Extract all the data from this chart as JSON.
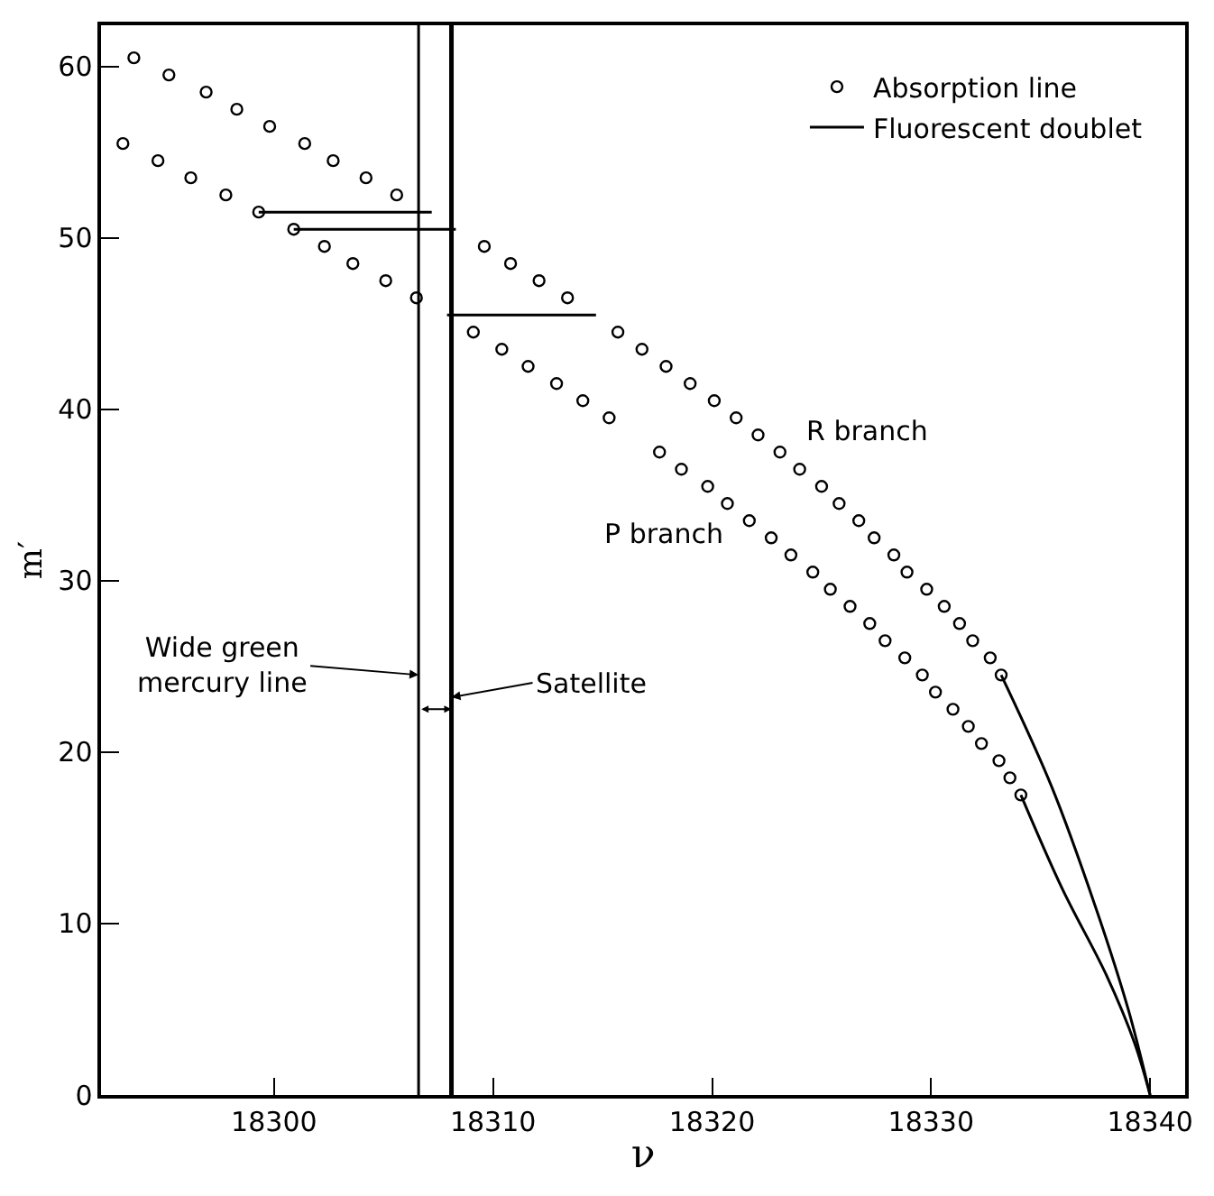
{
  "chart_data": {
    "type": "scatter",
    "xlabel": "ν",
    "ylabel": "m′",
    "xlim": [
      18292.1,
      18341.6
    ],
    "ylim": [
      0,
      62.4
    ],
    "xticks": [
      18300,
      18310,
      18320,
      18330,
      18340
    ],
    "yticks": [
      0,
      10,
      20,
      30,
      40,
      50,
      60
    ],
    "legend": "top right",
    "marker": "circle",
    "series": [
      {
        "name": "Absorption line",
        "color": "#000000",
        "x": [
          18293.6,
          18295.2,
          18296.9,
          18298.3,
          18299.8,
          18301.4,
          18302.7,
          18304.2,
          18305.6,
          18309.6,
          18310.8,
          18312.1,
          18313.4,
          18315.7,
          18316.8,
          18317.9,
          18319.0,
          18320.1,
          18321.1,
          18322.1,
          18323.1,
          18324.0,
          18325.0,
          18325.8,
          18326.7,
          18327.4,
          18328.3,
          18328.9,
          18329.8,
          18330.6,
          18331.3,
          18331.9,
          18332.7,
          18333.2
        ],
        "values": [
          60.5,
          59.5,
          58.5,
          57.5,
          56.5,
          55.5,
          54.5,
          53.5,
          52.5,
          49.5,
          48.5,
          47.5,
          46.5,
          44.5,
          43.5,
          42.5,
          41.5,
          40.5,
          39.5,
          38.5,
          37.5,
          36.5,
          35.5,
          34.5,
          33.5,
          32.5,
          31.5,
          30.5,
          29.5,
          28.5,
          27.5,
          26.5,
          25.5,
          24.5
        ]
      },
      {
        "color": "#000000",
        "x": [
          18293.1,
          18294.7,
          18296.2,
          18297.8,
          18299.3,
          18300.9,
          18302.3,
          18303.6,
          18305.1,
          18306.5,
          18309.1,
          18310.4,
          18311.6,
          18312.9,
          18314.1,
          18315.3,
          18317.6,
          18318.6,
          18319.8,
          18320.7,
          18321.7,
          18322.7,
          18323.6,
          18324.6,
          18325.4,
          18326.3,
          18327.2,
          18327.9,
          18328.8,
          18329.6,
          18330.2,
          18331.0,
          18331.7,
          18332.3,
          18333.1,
          18333.6,
          18334.1
        ],
        "values": [
          55.5,
          54.5,
          53.5,
          52.5,
          51.5,
          50.5,
          49.5,
          48.5,
          47.5,
          46.5,
          44.5,
          43.5,
          42.5,
          41.5,
          40.5,
          39.5,
          37.5,
          36.5,
          35.5,
          34.5,
          33.5,
          32.5,
          31.5,
          30.5,
          29.5,
          28.5,
          27.5,
          26.5,
          25.5,
          24.5,
          23.5,
          22.5,
          21.5,
          20.5,
          19.5,
          18.5,
          17.5
        ]
      },
      {
        "name": "Fluorescent doublet",
        "type": "line",
        "color": "#000000",
        "marker": "none",
        "x": [
          18299.3,
          18307.2
        ],
        "values": [
          51.5,
          51.5
        ]
      },
      {
        "type": "line",
        "color": "#000000",
        "marker": "none",
        "x": [
          18300.9,
          18308.3
        ],
        "values": [
          50.5,
          50.5
        ]
      },
      {
        "type": "line",
        "color": "#000000",
        "marker": "none",
        "x": [
          18307.9,
          18314.7
        ],
        "values": [
          45.5,
          45.5
        ]
      },
      {
        "type": "line",
        "color": "#000000",
        "marker": "none",
        "x": [
          18333.2,
          18335.5,
          18337.5,
          18339.0,
          18340.0
        ],
        "values": [
          24.5,
          18,
          11,
          5,
          0
        ]
      },
      {
        "type": "line",
        "color": "#000000",
        "marker": "none",
        "x": [
          18334.1,
          18336.0,
          18338.0,
          18339.3,
          18340.0
        ],
        "values": [
          17.5,
          12,
          7,
          3,
          0
        ]
      }
    ],
    "ref_lines": [
      {
        "axis": "x",
        "value": 18306.6,
        "label": "Wide green mercury line",
        "color": "#000000"
      },
      {
        "axis": "x",
        "value": 18308.1,
        "label": "Satellite",
        "color": "#000000"
      }
    ],
    "annotations": [
      "R branch",
      "P branch"
    ]
  }
}
